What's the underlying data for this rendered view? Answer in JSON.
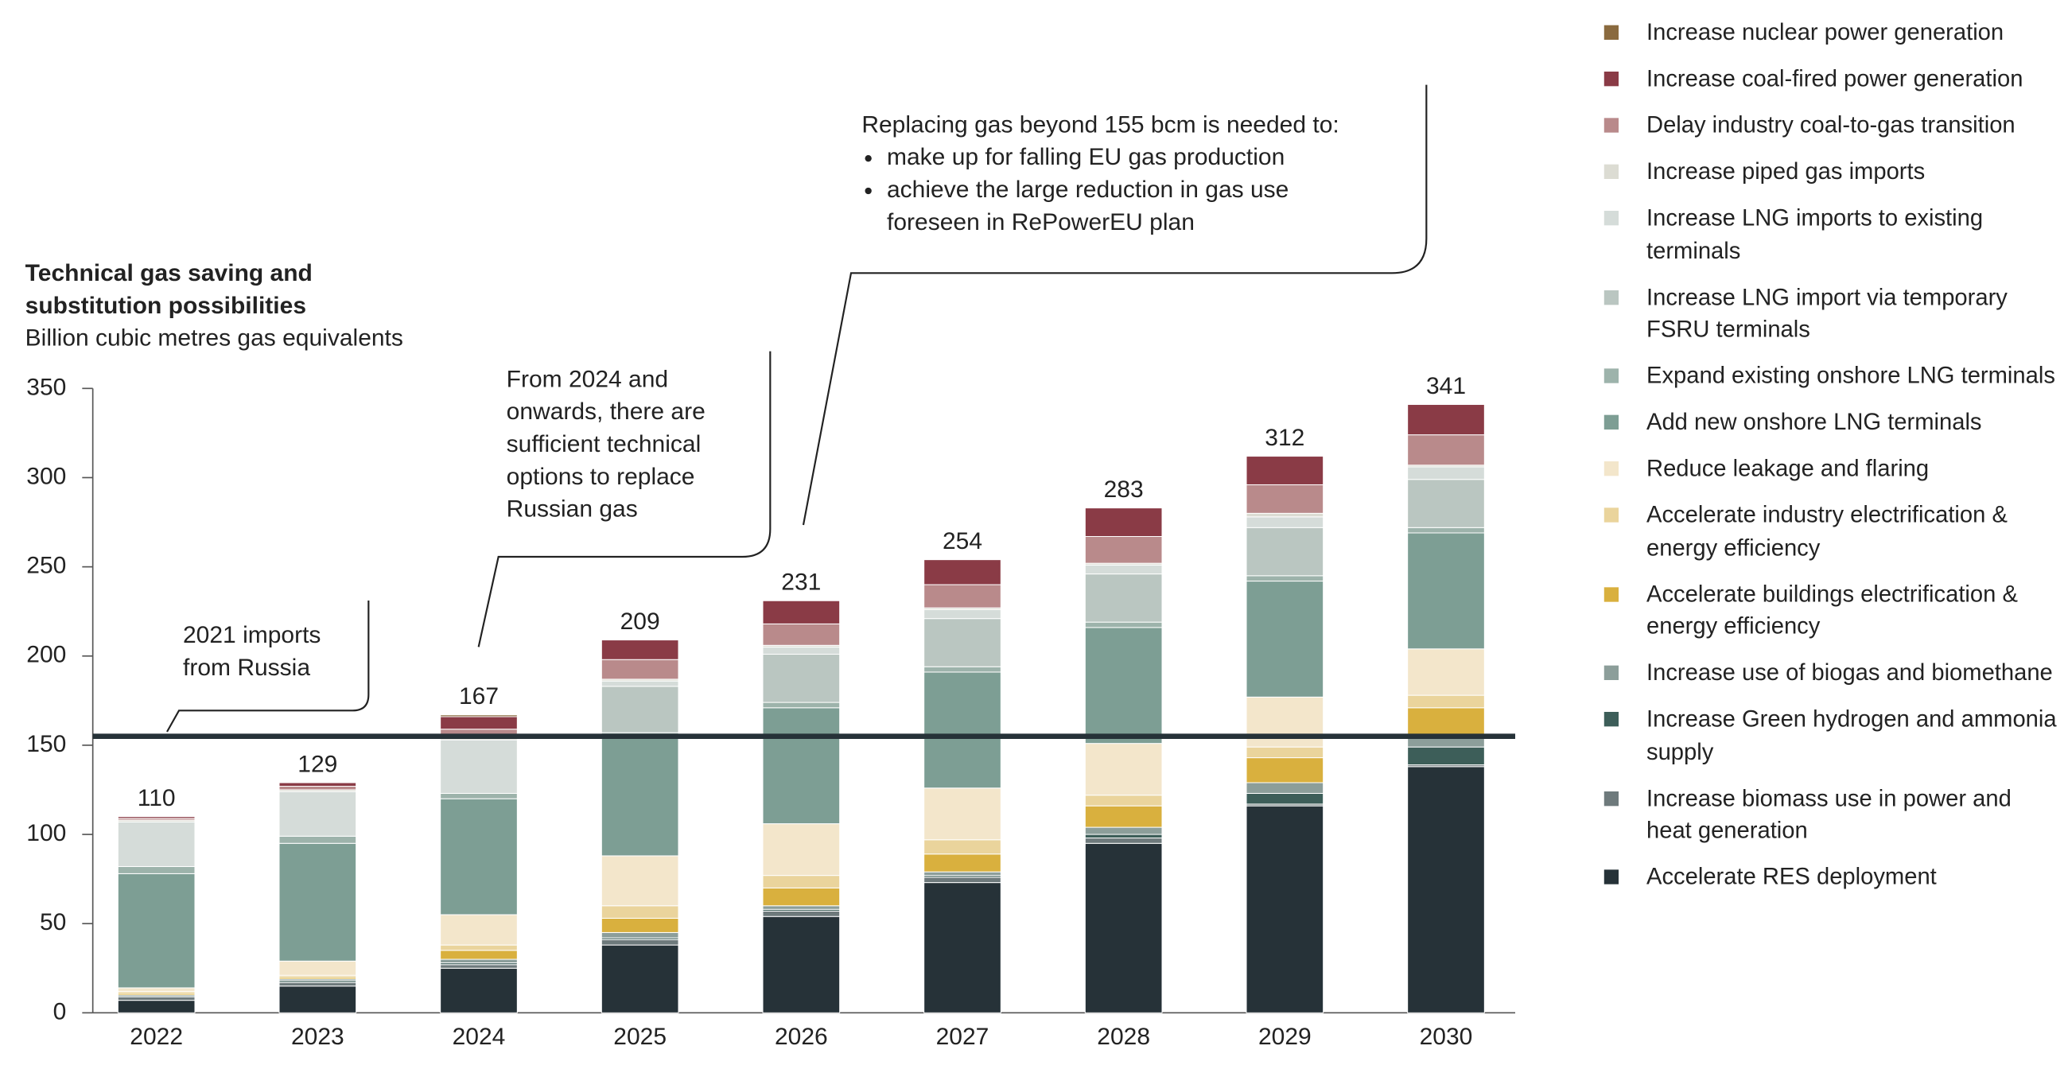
{
  "chart_data": {
    "type": "stacked-bar",
    "title_lines": [
      "Technical gas saving and",
      "substitution possibilities"
    ],
    "subtitle": "Billion cubic metres gas equivalents",
    "categories": [
      "2022",
      "2023",
      "2024",
      "2025",
      "2026",
      "2027",
      "2028",
      "2029",
      "2030"
    ],
    "totals": [
      110,
      129,
      167,
      209,
      231,
      254,
      283,
      312,
      341
    ],
    "ylim": [
      0,
      350
    ],
    "yticks": [
      0,
      50,
      100,
      150,
      200,
      250,
      300,
      350
    ],
    "reference_line": {
      "value": 155,
      "color": "#263238"
    },
    "annotations": [
      {
        "lines": [
          "2021 imports",
          "from Russia"
        ]
      },
      {
        "lines": [
          "From 2024 and",
          "onwards, there are",
          "sufficient technical",
          "options to replace",
          "Russian gas"
        ]
      },
      {
        "lines": [
          "Replacing gas beyond 155 bcm is needed to:"
        ],
        "bullets": [
          [
            "make up for falling EU gas production"
          ],
          [
            "achieve the large reduction in gas use",
            "foreseen in RePowerEU plan"
          ]
        ]
      }
    ],
    "series": [
      {
        "name": "Accelerate RES deployment",
        "color": "#263238",
        "values": [
          7,
          15,
          25,
          38,
          54,
          73,
          95,
          116,
          138
        ]
      },
      {
        "name": "Increase biomass use in power and heat generation",
        "color": "#6e7a7c",
        "values": [
          2,
          2,
          2,
          3,
          3,
          3,
          3,
          1,
          1
        ]
      },
      {
        "name": "Increase Green hydrogen and ammonia supply",
        "color": "#3d5e59",
        "values": [
          0,
          1,
          1,
          1,
          1,
          1,
          2,
          6,
          10
        ]
      },
      {
        "name": "Increase use of biogas and biomethane",
        "color": "#8c9e9a",
        "values": [
          1,
          1,
          2,
          3,
          2,
          2,
          4,
          6,
          6
        ]
      },
      {
        "name": "Accelerate buildings electrification & energy efficiency",
        "color": "#d9b03e",
        "values": [
          1,
          1,
          5,
          8,
          10,
          10,
          12,
          14,
          16
        ]
      },
      {
        "name": "Accelerate industry electrification & energy efficiency",
        "color": "#ead49c",
        "values": [
          1,
          1,
          3,
          7,
          7,
          8,
          6,
          6,
          7
        ]
      },
      {
        "name": "Reduce leakage and flaring",
        "color": "#f3e6cb",
        "values": [
          2,
          8,
          17,
          28,
          29,
          29,
          29,
          28,
          26
        ]
      },
      {
        "name": "Add new onshore LNG terminals",
        "color": "#7d9e94",
        "values": [
          64,
          66,
          65,
          66,
          65,
          65,
          65,
          65,
          65
        ]
      },
      {
        "name": "Expand existing onshore LNG terminals",
        "color": "#9db3ab",
        "values": [
          4,
          4,
          3,
          3,
          3,
          3,
          3,
          3,
          3
        ]
      },
      {
        "name": "Increase LNG import via temporary FSRU terminals",
        "color": "#bac6c1",
        "values": [
          0,
          0,
          0,
          26,
          27,
          27,
          27,
          27,
          27
        ]
      },
      {
        "name": "Increase LNG imports to existing terminals",
        "color": "#d5dcd9",
        "values": [
          25,
          25,
          30,
          3,
          4,
          5,
          5,
          6,
          7
        ]
      },
      {
        "name": "Increase piped gas imports",
        "color": "#dcdcd3",
        "values": [
          1,
          1,
          2,
          1,
          1,
          1,
          1,
          2,
          1
        ]
      },
      {
        "name": "Delay industry coal-to-gas transition",
        "color": "#b98a8b",
        "values": [
          1,
          2,
          4,
          11,
          12,
          13,
          15,
          16,
          17
        ]
      },
      {
        "name": "Increase coal-fired power generation",
        "color": "#8a3b46",
        "values": [
          1,
          2,
          7,
          11,
          13,
          14,
          16,
          16,
          17
        ]
      },
      {
        "name": "Increase nuclear power generation",
        "color": "#8a6a3f",
        "values": [
          0,
          0,
          1,
          0,
          0,
          0,
          0,
          0,
          0
        ]
      }
    ]
  }
}
